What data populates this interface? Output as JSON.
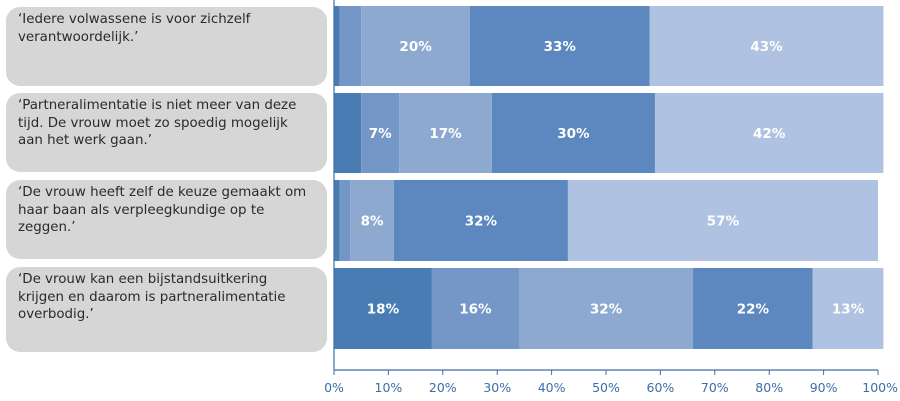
{
  "chart_data": {
    "type": "bar",
    "orientation": "horizontal",
    "stacked": true,
    "categories": [
      "‘Iedere volwassene is voor zichzelf verantwoordelijk.’",
      "‘Partneralimentatie is niet meer van deze tijd. De vrouw moet zo spoedig mogelijk aan het werk gaan.’",
      "‘De vrouw heeft zelf de keuze gemaakt om haar baan als verpleegkundige op te zeggen.’",
      "‘De vrouw kan een bijstandsuitkering krijgen en daarom is partneralimentatie overbodig.’"
    ],
    "series": [
      {
        "values": [
          1,
          5,
          1,
          18
        ]
      },
      {
        "values": [
          4,
          7,
          2,
          16
        ]
      },
      {
        "values": [
          20,
          17,
          8,
          32
        ]
      },
      {
        "values": [
          33,
          30,
          32,
          22
        ]
      },
      {
        "values": [
          43,
          42,
          57,
          13
        ]
      }
    ],
    "data_labels": [
      [
        "",
        "",
        "20%",
        "33%",
        "43%"
      ],
      [
        "",
        "7%",
        "17%",
        "30%",
        "42%"
      ],
      [
        "",
        "",
        "8%",
        "32%",
        "57%"
      ],
      [
        "18%",
        "16%",
        "32%",
        "22%",
        "13%"
      ]
    ],
    "series_colors": [
      "#4a7cb4",
      "#7497c8",
      "#8ea9d0",
      "#5c88bf",
      "#b0c2e1"
    ],
    "xlim": [
      0,
      100
    ],
    "x_ticks": [
      "0%",
      "10%",
      "20%",
      "30%",
      "40%",
      "50%",
      "60%",
      "70%",
      "80%",
      "90%",
      "100%"
    ],
    "xlabel": "",
    "ylabel": "",
    "title": "",
    "grid": false,
    "legend": "none"
  }
}
